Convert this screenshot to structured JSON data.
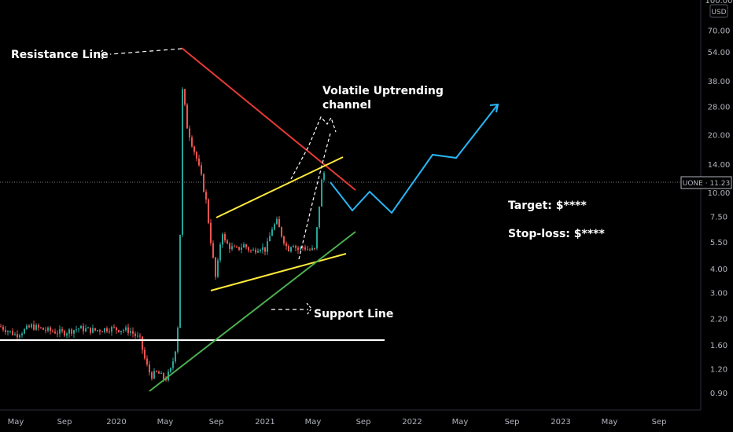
{
  "chart_data": {
    "type": "candlestick",
    "yscale": "log",
    "currency_label": "USD",
    "y_tick_labels": [
      "100.00",
      "70.00",
      "54.00",
      "38.00",
      "28.00",
      "20.00",
      "14.00",
      "10.00",
      "7.50",
      "5.50",
      "4.00",
      "3.00",
      "2.20",
      "1.60",
      "1.20",
      "0.90"
    ],
    "y_tick_values": [
      100,
      70,
      54,
      38,
      28,
      20,
      14,
      10,
      7.5,
      5.5,
      4,
      3,
      2.2,
      1.6,
      1.2,
      0.9
    ],
    "x_tick_labels": [
      "May",
      "Sep",
      "2020",
      "May",
      "Sep",
      "2021",
      "May",
      "Sep",
      "2022",
      "May",
      "Sep",
      "2023",
      "May",
      "Sep"
    ],
    "current_price": {
      "symbol": "UONE",
      "value": 11.23,
      "label": "UONE · 11.23"
    },
    "annotations": [
      {
        "id": "resistance",
        "text": "Resistance Line"
      },
      {
        "id": "channel",
        "text": "Volatile Uptrending\nchannel"
      },
      {
        "id": "support",
        "text": "Support Line"
      },
      {
        "id": "target",
        "text": "Target: $****"
      },
      {
        "id": "stoploss",
        "text": "Stop-loss: $****"
      }
    ],
    "colors": {
      "background": "#000000",
      "up": "#26a69a",
      "down": "#ef5350",
      "resistance": "#e53935",
      "channel": "#ffeb3b",
      "support": "#4caf50",
      "projection": "#29b6f6",
      "horizontal": "#ffffff"
    }
  }
}
